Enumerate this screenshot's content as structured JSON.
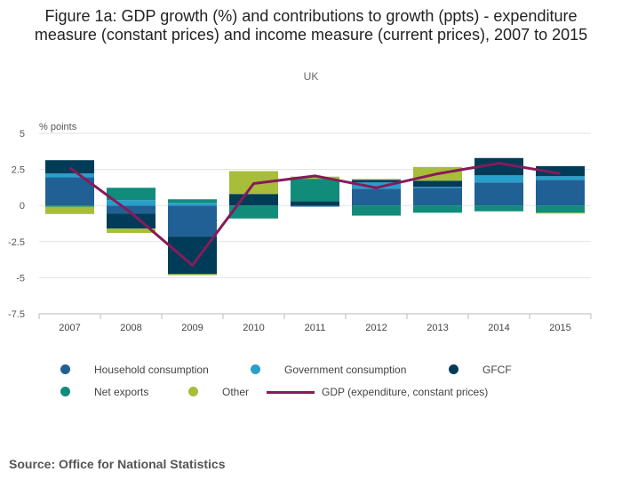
{
  "chart_data": {
    "type": "bar",
    "stacked": true,
    "title": "Figure 1a: GDP growth (%) and contributions to growth (ppts) - expenditure measure (constant prices) and income measure (current prices), 2007 to 2015",
    "subtitle": "UK",
    "ylabel": "% points",
    "ylim": [
      -7.5,
      5
    ],
    "yticks": [
      5,
      2.5,
      0,
      -2.5,
      -5,
      -7.5
    ],
    "ytick_labels": [
      "5",
      "2.5",
      "0",
      "-2.5",
      "-5",
      "-7.5"
    ],
    "grid": true,
    "legend_position": "bottom",
    "categories": [
      "2007",
      "2008",
      "2009",
      "2010",
      "2011",
      "2012",
      "2013",
      "2014",
      "2015"
    ],
    "series": [
      {
        "name": "Household consumption",
        "color": "#206095",
        "values": [
          1.95,
          -0.55,
          -2.15,
          0,
          -0.08,
          1.17,
          1.23,
          1.6,
          1.78
        ]
      },
      {
        "name": "Government consumption",
        "color": "#27a0cc",
        "values": [
          0.27,
          0.37,
          0.18,
          0,
          0,
          0.43,
          0.06,
          0.49,
          0.25
        ]
      },
      {
        "name": "GFCF",
        "color": "#003c57",
        "values": [
          0.92,
          -1.05,
          -2.6,
          0.8,
          0.3,
          0.18,
          0.43,
          1.2,
          0.7
        ]
      },
      {
        "name": "Net exports",
        "color": "#118c7b",
        "values": [
          -0.08,
          0.86,
          0.25,
          -0.9,
          1.55,
          -0.7,
          -0.5,
          -0.4,
          -0.5
        ]
      },
      {
        "name": "Other",
        "color": "#a8bd3a",
        "values": [
          -0.51,
          -0.3,
          -0.08,
          1.58,
          0.15,
          0.06,
          0.95,
          0,
          -0.06
        ]
      },
      {
        "name": "GDP (expenditure, constant prices)",
        "type": "line",
        "color": "#871a5b",
        "values": [
          2.62,
          -0.5,
          -4.14,
          1.52,
          2.05,
          1.23,
          2.2,
          2.93,
          2.21
        ]
      }
    ]
  },
  "source": "Source: Office for National Statistics"
}
